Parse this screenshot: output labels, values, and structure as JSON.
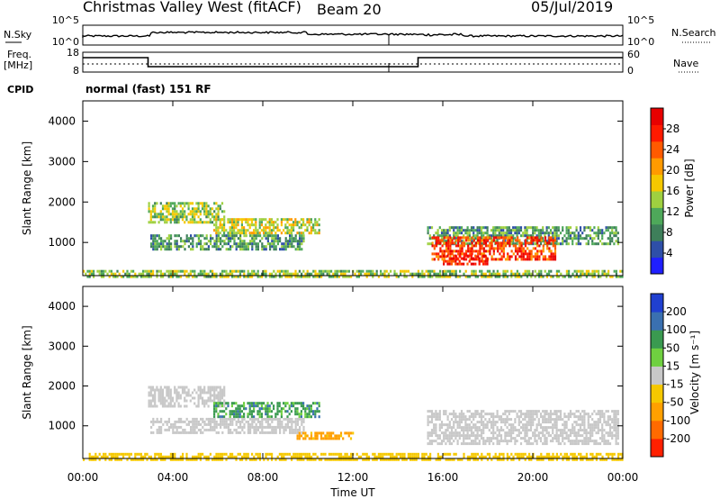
{
  "header": {
    "station": "Christmas Valley West (fitACF)",
    "beam": "Beam 20",
    "date": "05/Jul/2019"
  },
  "top_panels": {
    "nsky_label": "N.Sky",
    "nsky_ticks": [
      "10^5",
      "10^0"
    ],
    "nsearch_label": "N.Search",
    "nsearch_ticks": [
      "10^5",
      "10^0"
    ],
    "freq_label": "Freq.",
    "freq_unit": "[MHz]",
    "freq_ticks": [
      "18",
      "8"
    ],
    "nave_label": "Nave",
    "nave_ticks": [
      "60",
      "0"
    ],
    "cpid_label": "CPID",
    "cpid_text": "normal (fast) 151 RF"
  },
  "chart_data": [
    {
      "type": "heatmap",
      "name": "Power",
      "xlabel": "Time UT",
      "ylabel": "Slant Range [km]",
      "x_ticks": [
        "00:00",
        "04:00",
        "08:00",
        "12:00",
        "16:00",
        "20:00",
        "00:00"
      ],
      "xlim_hours": [
        0,
        24
      ],
      "y_ticks": [
        1000,
        2000,
        3000,
        4000
      ],
      "ylim_km": [
        180,
        4500
      ],
      "colorbar": {
        "label": "Power [dB]",
        "ticks": [
          4,
          8,
          12,
          16,
          20,
          24,
          28
        ],
        "range": [
          0,
          32
        ],
        "colors": [
          "#1f1fff",
          "#2e4fa8",
          "#3e7f5a",
          "#4ea85a",
          "#9fd040",
          "#f5c800",
          "#ff9a00",
          "#ff5a00",
          "#ff1a00",
          "#e80000"
        ]
      },
      "regions": [
        {
          "t0": 2.9,
          "t1": 6.3,
          "r0": 1500,
          "r1": 2000,
          "level": 14
        },
        {
          "t0": 5.8,
          "t1": 10.5,
          "r0": 1200,
          "r1": 1600,
          "level": 16
        },
        {
          "t0": 3.0,
          "t1": 9.8,
          "r0": 800,
          "r1": 1200,
          "level": 10
        },
        {
          "t0": 15.3,
          "t1": 23.8,
          "r0": 950,
          "r1": 1400,
          "level": 10
        },
        {
          "t0": 15.5,
          "t1": 21.0,
          "r0": 600,
          "r1": 1150,
          "level": 26
        },
        {
          "t0": 16.0,
          "t1": 18.0,
          "r0": 480,
          "r1": 700,
          "level": 28
        },
        {
          "t0": 0.0,
          "t1": 24.0,
          "r0": 180,
          "r1": 320,
          "level": 14
        }
      ]
    },
    {
      "type": "heatmap",
      "name": "Velocity",
      "xlabel": "Time UT",
      "ylabel": "Slant Range [km]",
      "x_ticks": [
        "00:00",
        "04:00",
        "08:00",
        "12:00",
        "16:00",
        "20:00",
        "00:00"
      ],
      "xlim_hours": [
        0,
        24
      ],
      "y_ticks": [
        1000,
        2000,
        3000,
        4000
      ],
      "ylim_km": [
        180,
        4500
      ],
      "colorbar": {
        "label": "Velocity [m s⁻¹]",
        "ticks": [
          "200",
          "100",
          "50",
          "15",
          "-15",
          "-50",
          "-100",
          "-200"
        ],
        "colors": [
          "#2040d0",
          "#3a70b0",
          "#3a9a50",
          "#6fd040",
          "#c8c8c8",
          "#f5c800",
          "#ffa000",
          "#ff6a00",
          "#ff2000"
        ]
      },
      "regions": [
        {
          "t0": 2.9,
          "t1": 6.3,
          "r0": 1500,
          "r1": 2000,
          "level": 0
        },
        {
          "t0": 5.8,
          "t1": 10.5,
          "r0": 1200,
          "r1": 1600,
          "level": 40
        },
        {
          "t0": 3.0,
          "t1": 9.8,
          "r0": 800,
          "r1": 1200,
          "level": 0
        },
        {
          "t0": 9.5,
          "t1": 12.0,
          "r0": 650,
          "r1": 850,
          "level": -60
        },
        {
          "t0": 15.3,
          "t1": 23.8,
          "r0": 550,
          "r1": 1400,
          "level": 0
        },
        {
          "t0": 0.0,
          "t1": 24.0,
          "r0": 180,
          "r1": 320,
          "level": -30
        }
      ]
    }
  ]
}
